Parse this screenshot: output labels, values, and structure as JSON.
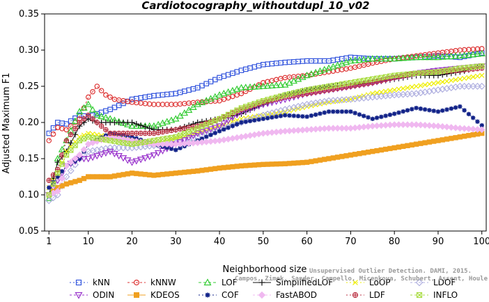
{
  "chart_data": {
    "type": "line",
    "title": "Cardiotocography_withoutdupl_10_v02",
    "xlabel": "Neighborhood size",
    "ylabel": "Adjusted Maximum F1",
    "xlim": [
      0,
      101
    ],
    "ylim": [
      0.05,
      0.35
    ],
    "xticks": [
      1,
      10,
      20,
      30,
      40,
      50,
      60,
      70,
      80,
      90,
      100
    ],
    "yticks": [
      0.05,
      0.1,
      0.15,
      0.2,
      0.25,
      0.3,
      0.35
    ],
    "ytick_labels": [
      "0.05",
      "0.10",
      "0.15",
      "0.20",
      "0.25",
      "0.30",
      "0.35"
    ],
    "grid": false,
    "legend_position": "bottom",
    "watermark": [
      "Unsupervised Outlier Detection. DAMI, 2015.",
      "Campos, Zimek, Sander, Campello, Micenkova, Schubert, Assent, Houle"
    ],
    "series": [
      {
        "name": "kNN",
        "color": "#3355dd",
        "marker": "square",
        "dash": "2,3",
        "points": [
          [
            1,
            0.185
          ],
          [
            3,
            0.2
          ],
          [
            5,
            0.198
          ],
          [
            8,
            0.21
          ],
          [
            10,
            0.208
          ],
          [
            15,
            0.218
          ],
          [
            20,
            0.232
          ],
          [
            25,
            0.237
          ],
          [
            30,
            0.24
          ],
          [
            35,
            0.248
          ],
          [
            40,
            0.262
          ],
          [
            45,
            0.272
          ],
          [
            50,
            0.28
          ],
          [
            55,
            0.283
          ],
          [
            60,
            0.285
          ],
          [
            65,
            0.285
          ],
          [
            70,
            0.29
          ],
          [
            75,
            0.288
          ],
          [
            80,
            0.288
          ],
          [
            85,
            0.29
          ],
          [
            90,
            0.292
          ],
          [
            95,
            0.29
          ],
          [
            100,
            0.296
          ]
        ]
      },
      {
        "name": "kNNW",
        "color": "#dd3333",
        "marker": "circle",
        "dash": "3,3",
        "points": [
          [
            1,
            0.175
          ],
          [
            3,
            0.193
          ],
          [
            5,
            0.19
          ],
          [
            8,
            0.205
          ],
          [
            10,
            0.235
          ],
          [
            12,
            0.25
          ],
          [
            14,
            0.238
          ],
          [
            16,
            0.232
          ],
          [
            20,
            0.228
          ],
          [
            25,
            0.225
          ],
          [
            30,
            0.225
          ],
          [
            35,
            0.228
          ],
          [
            40,
            0.23
          ],
          [
            45,
            0.24
          ],
          [
            50,
            0.255
          ],
          [
            55,
            0.262
          ],
          [
            60,
            0.265
          ],
          [
            65,
            0.27
          ],
          [
            70,
            0.275
          ],
          [
            75,
            0.282
          ],
          [
            80,
            0.288
          ],
          [
            85,
            0.292
          ],
          [
            90,
            0.296
          ],
          [
            95,
            0.3
          ],
          [
            100,
            0.302
          ]
        ]
      },
      {
        "name": "LOF",
        "color": "#33cc33",
        "marker": "triangle",
        "dash": "4,3",
        "points": [
          [
            1,
            0.095
          ],
          [
            3,
            0.15
          ],
          [
            5,
            0.175
          ],
          [
            8,
            0.215
          ],
          [
            10,
            0.225
          ],
          [
            12,
            0.21
          ],
          [
            15,
            0.205
          ],
          [
            20,
            0.195
          ],
          [
            25,
            0.195
          ],
          [
            30,
            0.205
          ],
          [
            35,
            0.225
          ],
          [
            40,
            0.238
          ],
          [
            45,
            0.248
          ],
          [
            50,
            0.25
          ],
          [
            55,
            0.252
          ],
          [
            60,
            0.265
          ],
          [
            65,
            0.275
          ],
          [
            70,
            0.285
          ],
          [
            75,
            0.288
          ],
          [
            80,
            0.288
          ],
          [
            85,
            0.29
          ],
          [
            90,
            0.29
          ],
          [
            95,
            0.292
          ],
          [
            100,
            0.295
          ]
        ]
      },
      {
        "name": "SimplifiedLOF",
        "color": "#111111",
        "marker": "plus",
        "dash": "",
        "points": [
          [
            1,
            0.1
          ],
          [
            3,
            0.145
          ],
          [
            5,
            0.16
          ],
          [
            8,
            0.195
          ],
          [
            10,
            0.205
          ],
          [
            12,
            0.2
          ],
          [
            15,
            0.2
          ],
          [
            20,
            0.2
          ],
          [
            25,
            0.19
          ],
          [
            30,
            0.19
          ],
          [
            35,
            0.2
          ],
          [
            40,
            0.205
          ],
          [
            45,
            0.212
          ],
          [
            50,
            0.225
          ],
          [
            55,
            0.238
          ],
          [
            60,
            0.245
          ],
          [
            65,
            0.25
          ],
          [
            70,
            0.252
          ],
          [
            75,
            0.255
          ],
          [
            80,
            0.26
          ],
          [
            85,
            0.265
          ],
          [
            90,
            0.265
          ],
          [
            95,
            0.27
          ],
          [
            100,
            0.277
          ]
        ]
      },
      {
        "name": "LoOP",
        "color": "#eeee00",
        "marker": "x",
        "dash": "2,3",
        "points": [
          [
            1,
            0.11
          ],
          [
            3,
            0.13
          ],
          [
            5,
            0.16
          ],
          [
            8,
            0.18
          ],
          [
            10,
            0.185
          ],
          [
            15,
            0.18
          ],
          [
            20,
            0.175
          ],
          [
            25,
            0.17
          ],
          [
            30,
            0.178
          ],
          [
            35,
            0.185
          ],
          [
            40,
            0.195
          ],
          [
            45,
            0.205
          ],
          [
            50,
            0.21
          ],
          [
            55,
            0.215
          ],
          [
            60,
            0.222
          ],
          [
            65,
            0.228
          ],
          [
            70,
            0.232
          ],
          [
            75,
            0.24
          ],
          [
            80,
            0.245
          ],
          [
            85,
            0.25
          ],
          [
            90,
            0.255
          ],
          [
            95,
            0.26
          ],
          [
            100,
            0.265
          ]
        ]
      },
      {
        "name": "LDOF",
        "color": "#b0b0e0",
        "marker": "diamond",
        "dash": "3,3",
        "points": [
          [
            1,
            0.092
          ],
          [
            3,
            0.1
          ],
          [
            5,
            0.125
          ],
          [
            8,
            0.15
          ],
          [
            10,
            0.16
          ],
          [
            15,
            0.165
          ],
          [
            20,
            0.165
          ],
          [
            25,
            0.168
          ],
          [
            30,
            0.172
          ],
          [
            35,
            0.18
          ],
          [
            40,
            0.19
          ],
          [
            45,
            0.2
          ],
          [
            50,
            0.21
          ],
          [
            55,
            0.218
          ],
          [
            60,
            0.225
          ],
          [
            65,
            0.23
          ],
          [
            70,
            0.232
          ],
          [
            75,
            0.235
          ],
          [
            80,
            0.238
          ],
          [
            85,
            0.24
          ],
          [
            90,
            0.245
          ],
          [
            95,
            0.25
          ],
          [
            100,
            0.25
          ]
        ]
      },
      {
        "name": "ODIN",
        "color": "#9933cc",
        "marker": "triangle-down",
        "dash": "3,3",
        "points": [
          [
            1,
            0.1
          ],
          [
            3,
            0.12
          ],
          [
            5,
            0.14
          ],
          [
            8,
            0.15
          ],
          [
            10,
            0.15
          ],
          [
            15,
            0.16
          ],
          [
            20,
            0.145
          ],
          [
            25,
            0.155
          ],
          [
            30,
            0.17
          ],
          [
            35,
            0.185
          ],
          [
            40,
            0.195
          ],
          [
            45,
            0.215
          ],
          [
            50,
            0.225
          ],
          [
            55,
            0.232
          ],
          [
            60,
            0.24
          ],
          [
            65,
            0.245
          ],
          [
            70,
            0.25
          ],
          [
            75,
            0.255
          ],
          [
            80,
            0.262
          ],
          [
            85,
            0.268
          ],
          [
            90,
            0.272
          ],
          [
            95,
            0.275
          ],
          [
            100,
            0.278
          ]
        ]
      },
      {
        "name": "KDEOS",
        "color": "#f0a020",
        "marker": "square-filled",
        "dash": "",
        "points": [
          [
            1,
            0.1
          ],
          [
            3,
            0.11
          ],
          [
            5,
            0.115
          ],
          [
            8,
            0.12
          ],
          [
            10,
            0.125
          ],
          [
            15,
            0.125
          ],
          [
            20,
            0.13
          ],
          [
            25,
            0.127
          ],
          [
            30,
            0.13
          ],
          [
            35,
            0.133
          ],
          [
            40,
            0.137
          ],
          [
            45,
            0.14
          ],
          [
            50,
            0.142
          ],
          [
            55,
            0.143
          ],
          [
            60,
            0.145
          ],
          [
            65,
            0.15
          ],
          [
            70,
            0.155
          ],
          [
            75,
            0.16
          ],
          [
            80,
            0.165
          ],
          [
            85,
            0.17
          ],
          [
            90,
            0.175
          ],
          [
            95,
            0.18
          ],
          [
            100,
            0.185
          ]
        ]
      },
      {
        "name": "COF",
        "color": "#112288",
        "marker": "star",
        "dash": "2,3",
        "points": [
          [
            1,
            0.11
          ],
          [
            3,
            0.125
          ],
          [
            5,
            0.14
          ],
          [
            8,
            0.15
          ],
          [
            10,
            0.17
          ],
          [
            15,
            0.185
          ],
          [
            20,
            0.18
          ],
          [
            25,
            0.17
          ],
          [
            30,
            0.162
          ],
          [
            35,
            0.175
          ],
          [
            40,
            0.188
          ],
          [
            45,
            0.2
          ],
          [
            50,
            0.205
          ],
          [
            55,
            0.21
          ],
          [
            60,
            0.208
          ],
          [
            65,
            0.215
          ],
          [
            70,
            0.215
          ],
          [
            75,
            0.205
          ],
          [
            80,
            0.212
          ],
          [
            85,
            0.22
          ],
          [
            90,
            0.215
          ],
          [
            95,
            0.222
          ],
          [
            100,
            0.196
          ]
        ]
      },
      {
        "name": "FastABOD",
        "color": "#f0b8f0",
        "marker": "diamond-filled",
        "dash": "3,3",
        "points": [
          [
            1,
            0.1
          ],
          [
            3,
            0.105
          ],
          [
            5,
            0.14
          ],
          [
            8,
            0.155
          ],
          [
            10,
            0.17
          ],
          [
            15,
            0.18
          ],
          [
            20,
            0.175
          ],
          [
            25,
            0.17
          ],
          [
            30,
            0.17
          ],
          [
            35,
            0.172
          ],
          [
            40,
            0.175
          ],
          [
            45,
            0.18
          ],
          [
            50,
            0.185
          ],
          [
            55,
            0.188
          ],
          [
            60,
            0.19
          ],
          [
            65,
            0.192
          ],
          [
            70,
            0.192
          ],
          [
            75,
            0.195
          ],
          [
            80,
            0.197
          ],
          [
            85,
            0.197
          ],
          [
            90,
            0.195
          ],
          [
            95,
            0.192
          ],
          [
            100,
            0.19
          ]
        ]
      },
      {
        "name": "LDF",
        "color": "#bb3344",
        "marker": "circle-plus",
        "dash": "2,3",
        "points": [
          [
            1,
            0.12
          ],
          [
            3,
            0.135
          ],
          [
            5,
            0.175
          ],
          [
            8,
            0.2
          ],
          [
            10,
            0.21
          ],
          [
            15,
            0.185
          ],
          [
            20,
            0.185
          ],
          [
            25,
            0.185
          ],
          [
            30,
            0.19
          ],
          [
            35,
            0.195
          ],
          [
            40,
            0.205
          ],
          [
            45,
            0.218
          ],
          [
            50,
            0.228
          ],
          [
            55,
            0.235
          ],
          [
            60,
            0.24
          ],
          [
            65,
            0.245
          ],
          [
            70,
            0.25
          ],
          [
            75,
            0.255
          ],
          [
            80,
            0.262
          ],
          [
            85,
            0.268
          ],
          [
            90,
            0.27
          ],
          [
            95,
            0.272
          ],
          [
            100,
            0.275
          ]
        ]
      },
      {
        "name": "INFLO",
        "color": "#aadd44",
        "marker": "x-box",
        "dash": "3,3",
        "points": [
          [
            1,
            0.1
          ],
          [
            3,
            0.13
          ],
          [
            5,
            0.155
          ],
          [
            8,
            0.175
          ],
          [
            10,
            0.18
          ],
          [
            15,
            0.175
          ],
          [
            20,
            0.17
          ],
          [
            25,
            0.175
          ],
          [
            30,
            0.18
          ],
          [
            35,
            0.192
          ],
          [
            40,
            0.205
          ],
          [
            45,
            0.22
          ],
          [
            50,
            0.23
          ],
          [
            55,
            0.238
          ],
          [
            60,
            0.245
          ],
          [
            65,
            0.25
          ],
          [
            70,
            0.255
          ],
          [
            75,
            0.26
          ],
          [
            80,
            0.265
          ],
          [
            85,
            0.268
          ],
          [
            90,
            0.27
          ],
          [
            95,
            0.275
          ],
          [
            100,
            0.278
          ]
        ]
      }
    ]
  }
}
